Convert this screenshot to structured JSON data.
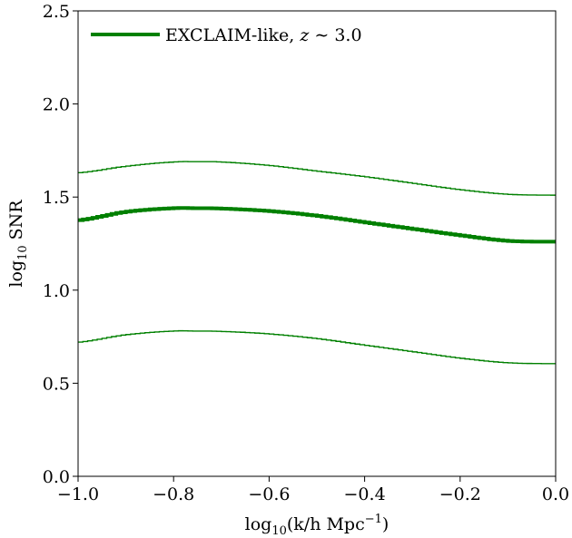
{
  "chart_data": {
    "type": "line",
    "title": "",
    "xlabel": {
      "prefix": "log",
      "sub": "10",
      "body": "(k/h Mpc",
      "sup": "−1",
      "suffix": ")"
    },
    "ylabel": {
      "prefix": "log",
      "sub": "10",
      "body": " SNR"
    },
    "xlim": [
      -1.0,
      0.0
    ],
    "ylim": [
      0.0,
      2.5
    ],
    "xticks": [
      -1.0,
      -0.8,
      -0.6,
      -0.4,
      -0.2,
      0.0
    ],
    "xtick_labels": [
      "−1.0",
      "−0.8",
      "−0.6",
      "−0.4",
      "−0.2",
      "0.0"
    ],
    "yticks": [
      0.0,
      0.5,
      1.0,
      1.5,
      2.0,
      2.5
    ],
    "ytick_labels": [
      "0.0",
      "0.5",
      "1.0",
      "1.5",
      "2.0",
      "2.5"
    ],
    "grid": false,
    "legend_position": "top-left",
    "step_count": 100,
    "x": [
      -1.0,
      -0.9,
      -0.8,
      -0.75,
      -0.7,
      -0.6,
      -0.5,
      -0.4,
      -0.3,
      -0.2,
      -0.1,
      0.0
    ],
    "series": [
      {
        "name": "EXCLAIM-like, z ∼ 3.0",
        "legend_label": "EXCLAIM-like, ",
        "legend_math": "z",
        "legend_suffix": " ∼ 3.0",
        "role": "central",
        "color": "#008000",
        "values": [
          1.375,
          1.42,
          1.44,
          1.44,
          1.438,
          1.425,
          1.4,
          1.365,
          1.33,
          1.295,
          1.265,
          1.26
        ]
      },
      {
        "name": "upper",
        "role": "bound",
        "color": "#008000",
        "values": [
          1.63,
          1.665,
          1.688,
          1.69,
          1.688,
          1.67,
          1.64,
          1.61,
          1.575,
          1.54,
          1.515,
          1.51
        ]
      },
      {
        "name": "lower",
        "role": "bound",
        "color": "#008000",
        "values": [
          0.72,
          0.76,
          0.78,
          0.78,
          0.778,
          0.765,
          0.74,
          0.705,
          0.67,
          0.635,
          0.61,
          0.605
        ]
      }
    ]
  }
}
